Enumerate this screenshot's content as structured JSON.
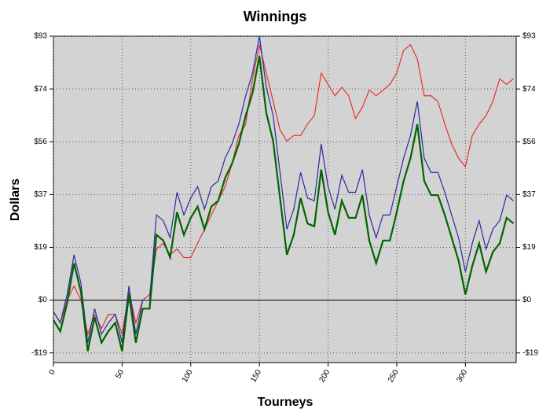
{
  "chart_data": {
    "type": "line",
    "title": "Winnings",
    "x_label": "Tourneys",
    "y_label": "Dollars",
    "x": [
      0,
      5,
      10,
      15,
      20,
      25,
      30,
      35,
      40,
      45,
      50,
      55,
      60,
      65,
      70,
      75,
      80,
      85,
      90,
      95,
      100,
      105,
      110,
      115,
      120,
      125,
      130,
      135,
      140,
      145,
      150,
      155,
      160,
      165,
      170,
      175,
      180,
      185,
      190,
      195,
      200,
      205,
      210,
      215,
      220,
      225,
      230,
      235,
      240,
      245,
      250,
      255,
      260,
      265,
      270,
      275,
      280,
      285,
      290,
      295,
      300,
      305,
      310,
      315,
      320,
      325,
      330,
      335
    ],
    "series": [
      {
        "color": "#e83030",
        "values": [
          -4,
          -8,
          0,
          5,
          0,
          -12,
          -5,
          -10,
          -5,
          -5,
          -12,
          3,
          -8,
          0,
          2,
          18,
          20,
          16,
          18,
          15,
          15,
          20,
          25,
          30,
          35,
          40,
          48,
          58,
          62,
          78,
          90,
          80,
          70,
          60,
          56,
          58,
          58,
          62,
          65,
          80,
          76,
          72,
          75,
          72,
          64,
          68,
          74,
          72,
          74,
          76,
          80,
          88,
          90,
          85,
          72,
          72,
          70,
          62,
          55,
          50,
          47,
          58,
          62,
          65,
          70,
          78,
          76,
          78
        ]
      },
      {
        "color": "#2a2aa0",
        "values": [
          -4,
          -8,
          2,
          16,
          6,
          -15,
          -3,
          -12,
          -8,
          -5,
          -15,
          5,
          -12,
          0,
          0,
          30,
          28,
          22,
          38,
          30,
          36,
          40,
          32,
          40,
          42,
          50,
          55,
          62,
          72,
          80,
          93,
          75,
          65,
          45,
          25,
          32,
          45,
          36,
          35,
          55,
          40,
          32,
          44,
          38,
          38,
          46,
          30,
          22,
          30,
          30,
          40,
          50,
          58,
          70,
          50,
          45,
          45,
          38,
          30,
          22,
          10,
          20,
          28,
          18,
          25,
          28,
          37,
          35
        ]
      },
      {
        "color": "#006400",
        "values": [
          -7,
          -11,
          -1,
          13,
          3,
          -18,
          -6,
          -15,
          -11,
          -8,
          -18,
          2,
          -15,
          -3,
          -3,
          23,
          21,
          15,
          31,
          23,
          29,
          33,
          25,
          33,
          35,
          43,
          48,
          55,
          65,
          73,
          86,
          66,
          56,
          36,
          16,
          23,
          36,
          27,
          26,
          46,
          31,
          23,
          35,
          29,
          29,
          37,
          21,
          13,
          21,
          21,
          31,
          42,
          50,
          62,
          42,
          37,
          37,
          30,
          22,
          14,
          2,
          12,
          20,
          10,
          17,
          20,
          29,
          27
        ]
      }
    ],
    "xlim": [
      0,
      337
    ],
    "ylim": [
      -22,
      93
    ],
    "xticks": [
      0,
      50,
      100,
      150,
      200,
      250,
      300
    ],
    "yticks": [
      {
        "value": -18.6,
        "label": "-$19"
      },
      {
        "value": 0,
        "label": "$0"
      },
      {
        "value": 18.6,
        "label": "$19"
      },
      {
        "value": 37.2,
        "label": "$37"
      },
      {
        "value": 55.8,
        "label": "$56"
      },
      {
        "value": 74.4,
        "label": "$74"
      },
      {
        "value": 93,
        "label": "$93"
      }
    ],
    "grid": true
  }
}
